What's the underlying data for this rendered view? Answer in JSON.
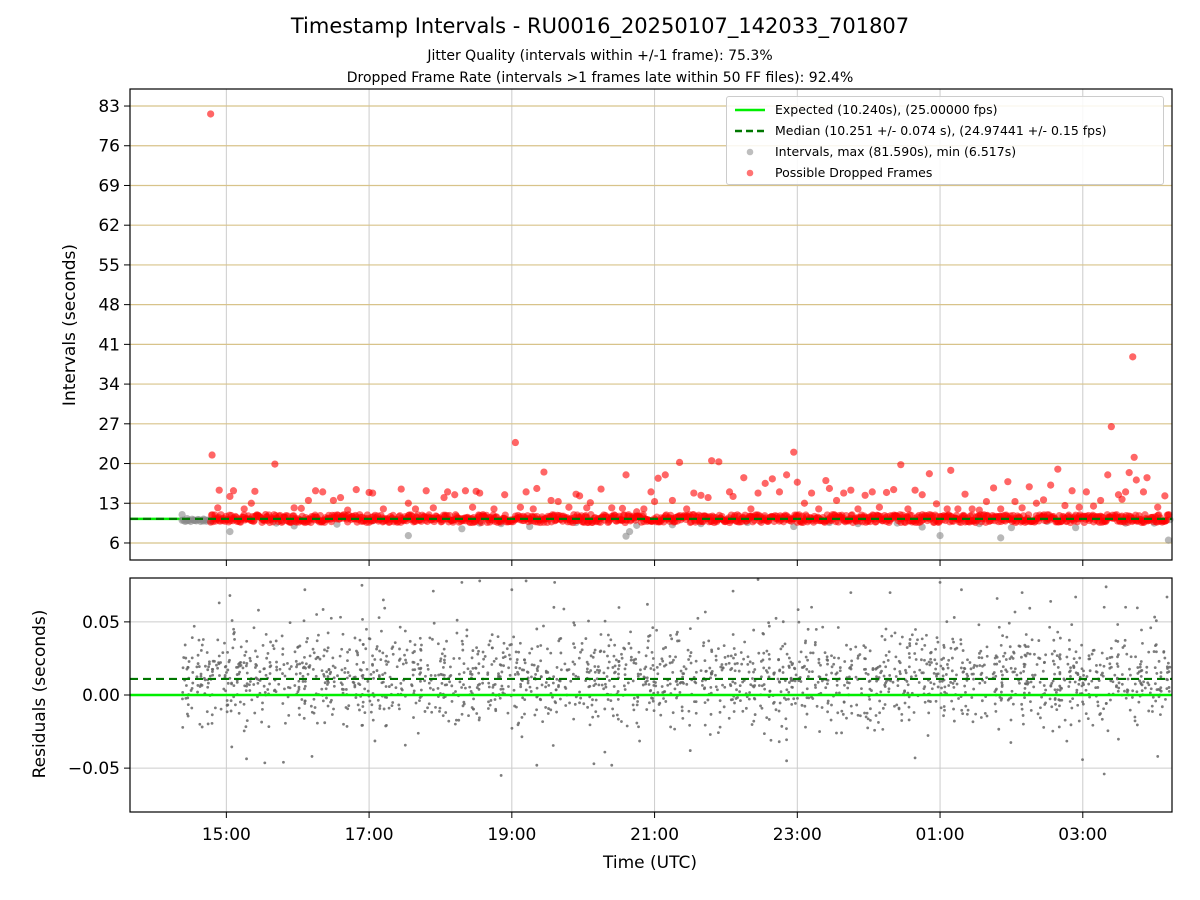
{
  "figure": {
    "title": "Timestamp Intervals - RU0016_20250107_142033_701807",
    "subtitle1": "Jitter Quality (intervals within +/-1 frame): 75.3%",
    "subtitle2": "Dropped Frame Rate (intervals >1 frames late within 50 FF files): 92.4%"
  },
  "legend": {
    "expected": "Expected (10.240s), (25.00000 fps)",
    "median": "Median (10.251 +/- 0.074 s), (24.97441 +/- 0.15 fps)",
    "intervals": "Intervals, max (81.590s), min (6.517s)",
    "dropped": "Possible Dropped Frames"
  },
  "colors": {
    "expected_line": "#00ee00",
    "median_line": "#007700",
    "intervals": "#888888",
    "dropped": "#ff0000",
    "hgrid_top": "#d8c38a",
    "grid": "#cccccc",
    "residuals": "#666666"
  },
  "chart_data": [
    {
      "type": "scatter",
      "name_panel": "intervals",
      "ylabel": "Intervals (seconds)",
      "xlabel": "",
      "x_unit": "hours UTC (continuous, >24 wraps past midnight)",
      "xlim": [
        13.65,
        28.25
      ],
      "ylim": [
        3.0,
        86.0
      ],
      "yticks": [
        6,
        13,
        20,
        27,
        34,
        41,
        48,
        55,
        62,
        69,
        76,
        83
      ],
      "xticks": [
        15,
        17,
        19,
        21,
        23,
        25,
        27
      ],
      "xticklabels": [
        "15:00",
        "17:00",
        "19:00",
        "21:00",
        "23:00",
        "01:00",
        "03:00"
      ],
      "expected_interval": 10.24,
      "median_interval": 10.251,
      "series": [
        {
          "name": "Intervals, max (81.590s), min (6.517s)",
          "points": [
            [
              14.38,
              11.0
            ],
            [
              14.45,
              10.3
            ],
            [
              14.55,
              10.0
            ],
            [
              14.68,
              10.2
            ],
            [
              14.79,
              9.9
            ],
            [
              15.05,
              8.0
            ],
            [
              15.7,
              9.5
            ],
            [
              15.95,
              9.0
            ],
            [
              16.55,
              9.3
            ],
            [
              17.05,
              9.9
            ],
            [
              17.55,
              7.3
            ],
            [
              18.3,
              8.5
            ],
            [
              18.55,
              9.5
            ],
            [
              18.85,
              9.4
            ],
            [
              19.25,
              8.9
            ],
            [
              19.9,
              9.6
            ],
            [
              20.6,
              7.2
            ],
            [
              20.65,
              8.0
            ],
            [
              20.75,
              9.1
            ],
            [
              21.25,
              9.2
            ],
            [
              21.65,
              9.4
            ],
            [
              22.3,
              9.6
            ],
            [
              22.95,
              8.9
            ],
            [
              23.45,
              9.6
            ],
            [
              23.85,
              9.4
            ],
            [
              24.4,
              9.5
            ],
            [
              24.75,
              8.8
            ],
            [
              25.0,
              7.3
            ],
            [
              25.55,
              9.4
            ],
            [
              25.85,
              6.9
            ],
            [
              26.0,
              8.7
            ],
            [
              26.5,
              9.8
            ],
            [
              26.9,
              8.7
            ],
            [
              27.6,
              9.5
            ],
            [
              28.0,
              9.5
            ],
            [
              28.2,
              6.5
            ],
            [
              28.22,
              10.1
            ]
          ]
        },
        {
          "name": "Possible Dropped Frames",
          "points": [
            [
              14.78,
              81.6
            ],
            [
              14.8,
              21.5
            ],
            [
              14.9,
              15.3
            ],
            [
              14.88,
              12.2
            ],
            [
              15.05,
              14.2
            ],
            [
              15.1,
              15.2
            ],
            [
              15.25,
              12.0
            ],
            [
              15.35,
              13.0
            ],
            [
              15.4,
              15.1
            ],
            [
              15.55,
              11.0
            ],
            [
              15.68,
              19.9
            ],
            [
              15.95,
              12.2
            ],
            [
              16.05,
              12.1
            ],
            [
              16.15,
              13.5
            ],
            [
              16.25,
              15.2
            ],
            [
              16.35,
              15.0
            ],
            [
              16.5,
              13.5
            ],
            [
              16.6,
              14.0
            ],
            [
              16.7,
              11.8
            ],
            [
              16.82,
              15.4
            ],
            [
              17.0,
              14.9
            ],
            [
              17.05,
              14.8
            ],
            [
              17.2,
              12.0
            ],
            [
              17.45,
              15.5
            ],
            [
              17.55,
              13.0
            ],
            [
              17.65,
              12.0
            ],
            [
              17.8,
              15.2
            ],
            [
              17.9,
              12.2
            ],
            [
              18.05,
              14.0
            ],
            [
              18.1,
              15.0
            ],
            [
              18.2,
              14.5
            ],
            [
              18.35,
              15.2
            ],
            [
              18.45,
              12.3
            ],
            [
              18.5,
              15.1
            ],
            [
              18.55,
              14.8
            ],
            [
              18.75,
              12.0
            ],
            [
              18.9,
              14.5
            ],
            [
              19.05,
              23.7
            ],
            [
              19.12,
              12.3
            ],
            [
              19.2,
              15.0
            ],
            [
              19.3,
              12.0
            ],
            [
              19.35,
              15.6
            ],
            [
              19.45,
              18.5
            ],
            [
              19.55,
              13.5
            ],
            [
              19.65,
              13.3
            ],
            [
              19.8,
              12.3
            ],
            [
              19.9,
              14.6
            ],
            [
              19.95,
              14.3
            ],
            [
              20.05,
              12.2
            ],
            [
              20.1,
              13.1
            ],
            [
              20.25,
              15.5
            ],
            [
              20.4,
              12.2
            ],
            [
              20.55,
              12.1
            ],
            [
              20.6,
              18.0
            ],
            [
              20.75,
              11.5
            ],
            [
              20.85,
              12.0
            ],
            [
              20.95,
              15.0
            ],
            [
              21.0,
              13.3
            ],
            [
              21.05,
              17.4
            ],
            [
              21.15,
              18.0
            ],
            [
              21.25,
              13.5
            ],
            [
              21.35,
              20.2
            ],
            [
              21.45,
              12.0
            ],
            [
              21.55,
              14.8
            ],
            [
              21.65,
              14.4
            ],
            [
              21.75,
              14.0
            ],
            [
              21.8,
              20.5
            ],
            [
              21.9,
              20.3
            ],
            [
              22.05,
              15.0
            ],
            [
              22.1,
              14.2
            ],
            [
              22.25,
              17.5
            ],
            [
              22.35,
              12.0
            ],
            [
              22.45,
              14.8
            ],
            [
              22.55,
              16.5
            ],
            [
              22.65,
              17.3
            ],
            [
              22.75,
              15.0
            ],
            [
              22.85,
              18.0
            ],
            [
              22.95,
              22.0
            ],
            [
              23.0,
              16.7
            ],
            [
              23.1,
              13.0
            ],
            [
              23.2,
              14.8
            ],
            [
              23.3,
              12.0
            ],
            [
              23.4,
              17.0
            ],
            [
              23.45,
              15.6
            ],
            [
              23.55,
              13.5
            ],
            [
              23.65,
              14.8
            ],
            [
              23.75,
              15.3
            ],
            [
              23.85,
              12.0
            ],
            [
              23.95,
              14.4
            ],
            [
              24.05,
              15.0
            ],
            [
              24.15,
              12.3
            ],
            [
              24.25,
              14.9
            ],
            [
              24.35,
              15.4
            ],
            [
              24.45,
              19.8
            ],
            [
              24.55,
              12.0
            ],
            [
              24.65,
              15.3
            ],
            [
              24.75,
              14.5
            ],
            [
              24.85,
              18.2
            ],
            [
              24.95,
              12.9
            ],
            [
              25.1,
              12.0
            ],
            [
              25.15,
              18.8
            ],
            [
              25.25,
              12.0
            ],
            [
              25.35,
              14.6
            ],
            [
              25.45,
              12.0
            ],
            [
              25.55,
              11.8
            ],
            [
              25.65,
              13.3
            ],
            [
              25.75,
              15.7
            ],
            [
              25.85,
              12.0
            ],
            [
              25.95,
              16.8
            ],
            [
              26.05,
              13.3
            ],
            [
              26.15,
              12.2
            ],
            [
              26.25,
              15.9
            ],
            [
              26.35,
              13.0
            ],
            [
              26.45,
              13.6
            ],
            [
              26.55,
              16.2
            ],
            [
              26.65,
              19.0
            ],
            [
              26.75,
              12.6
            ],
            [
              26.85,
              15.2
            ],
            [
              26.95,
              12.3
            ],
            [
              27.05,
              15.0
            ],
            [
              27.15,
              12.5
            ],
            [
              27.25,
              13.5
            ],
            [
              27.35,
              18.0
            ],
            [
              27.4,
              26.5
            ],
            [
              27.5,
              14.5
            ],
            [
              27.55,
              13.7
            ],
            [
              27.6,
              15.0
            ],
            [
              27.65,
              18.4
            ],
            [
              27.7,
              38.8
            ],
            [
              27.72,
              21.1
            ],
            [
              27.75,
              17.1
            ],
            [
              27.85,
              15.0
            ],
            [
              27.9,
              17.5
            ],
            [
              28.05,
              12.3
            ],
            [
              28.15,
              14.3
            ]
          ]
        }
      ]
    },
    {
      "type": "scatter",
      "name_panel": "residuals",
      "ylabel": "Residuals (seconds)",
      "xlabel": "Time (UTC)",
      "xlim": [
        13.65,
        28.25
      ],
      "ylim": [
        -0.08,
        0.08
      ],
      "yticks": [
        -0.05,
        0.0,
        0.05
      ],
      "yticklabels": [
        "−0.05",
        "0.00",
        "0.05"
      ],
      "xticks": [
        15,
        17,
        19,
        21,
        23,
        25,
        27
      ],
      "xticklabels": [
        "15:00",
        "17:00",
        "19:00",
        "21:00",
        "23:00",
        "01:00",
        "03:00"
      ],
      "expected_residual": 0.0,
      "median_residual": 0.011,
      "residual_cloud": {
        "x_start": 14.38,
        "x_end": 28.22,
        "approx_points": 2000,
        "center": 0.011,
        "spread_1sigma": 0.017,
        "approx_range": [
          -0.057,
          0.08
        ]
      },
      "outliers": [
        [
          14.55,
          0.047
        ],
        [
          14.9,
          0.063
        ],
        [
          15.05,
          0.068
        ],
        [
          15.45,
          0.058
        ],
        [
          15.8,
          -0.046
        ],
        [
          16.1,
          0.072
        ],
        [
          16.2,
          -0.042
        ],
        [
          16.9,
          0.075
        ],
        [
          17.2,
          0.065
        ],
        [
          17.9,
          0.071
        ],
        [
          18.3,
          0.077
        ],
        [
          18.55,
          0.078
        ],
        [
          18.85,
          -0.055
        ],
        [
          19.0,
          0.072
        ],
        [
          19.2,
          0.078
        ],
        [
          19.35,
          -0.048
        ],
        [
          19.6,
          0.077
        ],
        [
          20.15,
          -0.047
        ],
        [
          20.4,
          -0.048
        ],
        [
          20.9,
          0.062
        ],
        [
          21.5,
          -0.038
        ],
        [
          22.1,
          0.071
        ],
        [
          22.45,
          0.079
        ],
        [
          22.85,
          -0.045
        ],
        [
          23.2,
          0.06
        ],
        [
          23.75,
          0.07
        ],
        [
          24.3,
          0.07
        ],
        [
          24.65,
          -0.043
        ],
        [
          25.0,
          0.077
        ],
        [
          25.3,
          0.072
        ],
        [
          25.8,
          0.066
        ],
        [
          26.15,
          0.07
        ],
        [
          26.55,
          0.064
        ],
        [
          26.9,
          0.067
        ],
        [
          27.3,
          0.06
        ],
        [
          27.3,
          -0.054
        ],
        [
          27.6,
          0.06
        ],
        [
          28.05,
          -0.042
        ],
        [
          28.18,
          0.067
        ]
      ]
    }
  ]
}
